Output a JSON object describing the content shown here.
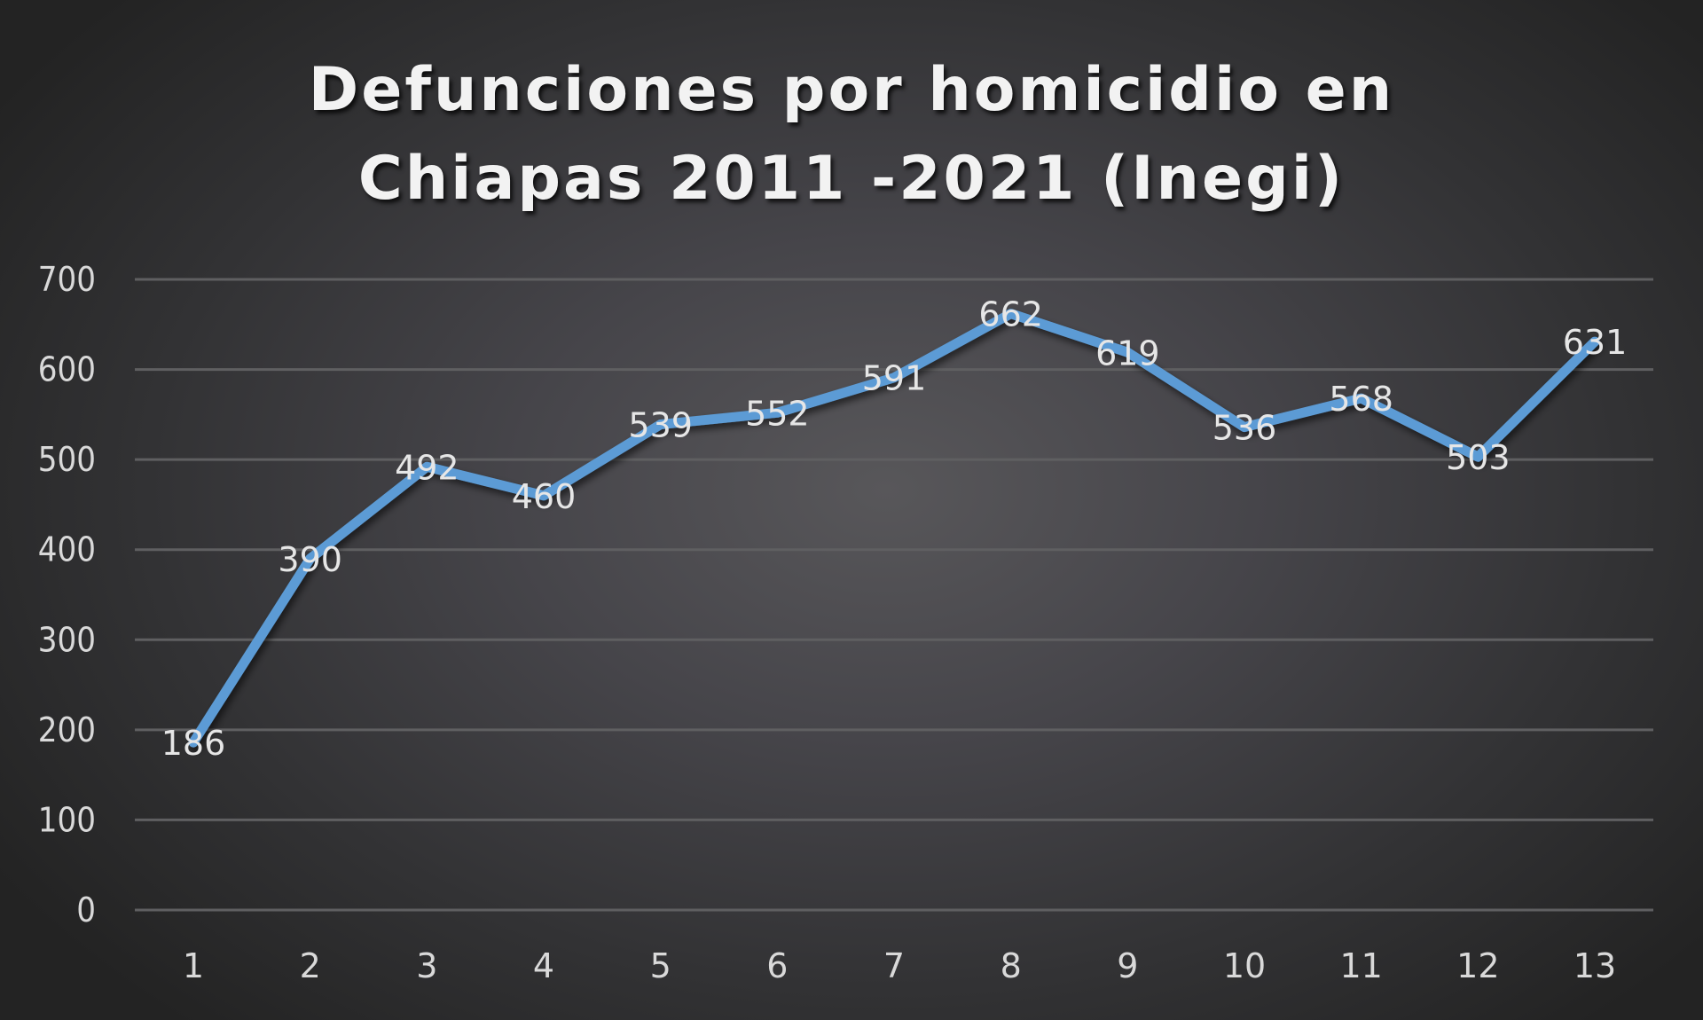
{
  "chart_data": {
    "type": "line",
    "title": "Defunciones por homicidio en Chiapas 2011 -2021 (Inegi)",
    "title_lines": [
      "Defunciones por homicidio en",
      "Chiapas 2011 -2021 (Inegi)"
    ],
    "xlabel": "",
    "ylabel": "",
    "categories": [
      "1",
      "2",
      "3",
      "4",
      "5",
      "6",
      "7",
      "8",
      "9",
      "10",
      "11",
      "12",
      "13"
    ],
    "series": [
      {
        "name": "Defunciones por homicidio",
        "values": [
          186,
          390,
          492,
          460,
          539,
          552,
          591,
          662,
          619,
          536,
          568,
          503,
          631
        ],
        "color": "#5b9bd5"
      }
    ],
    "ylim": [
      0,
      700
    ],
    "yticks": [
      0,
      100,
      200,
      300,
      400,
      500,
      600,
      700
    ],
    "grid": true,
    "legend": "none",
    "data_labels": true
  },
  "colors": {
    "line": "#5b9bd5",
    "gridline": "#5f5f61",
    "text": "#d9d9d9",
    "title": "#f2f2f2"
  }
}
